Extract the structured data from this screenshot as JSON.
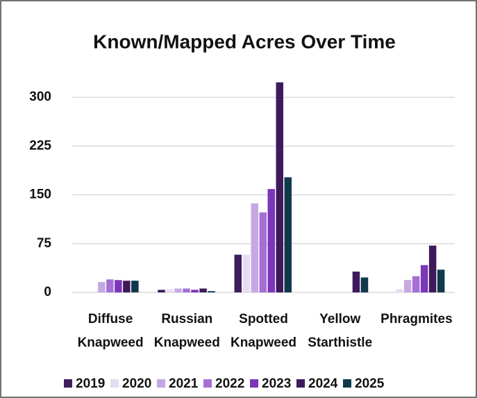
{
  "chart_data": {
    "type": "bar",
    "title": "Known/Mapped Acres Over Time",
    "categories": [
      "Diffuse Knapweed",
      "Russian Knapweed",
      "Spotted Knapweed",
      "Yellow Starthistle",
      "Phragmites"
    ],
    "series": [
      {
        "name": "2019",
        "color": "#3f1d5e",
        "values": [
          0,
          4,
          58,
          0,
          0
        ]
      },
      {
        "name": "2020",
        "color": "#e6dcf3",
        "values": [
          0,
          5,
          58,
          0,
          5
        ]
      },
      {
        "name": "2021",
        "color": "#c5a8e2",
        "values": [
          16,
          6,
          137,
          0,
          19
        ]
      },
      {
        "name": "2022",
        "color": "#a56fd3",
        "values": [
          20,
          6,
          123,
          0,
          25
        ]
      },
      {
        "name": "2023",
        "color": "#7b36b9",
        "values": [
          19,
          4,
          159,
          0,
          42
        ]
      },
      {
        "name": "2024",
        "color": "#3e1a5c",
        "values": [
          18,
          6,
          323,
          32,
          72
        ]
      },
      {
        "name": "2025",
        "color": "#10394d",
        "values": [
          18,
          2,
          177,
          23,
          35
        ]
      }
    ],
    "ylim": [
      0,
      330
    ],
    "yticks": [
      0,
      75,
      150,
      225,
      300
    ],
    "grid": true,
    "legend": "bottom"
  }
}
